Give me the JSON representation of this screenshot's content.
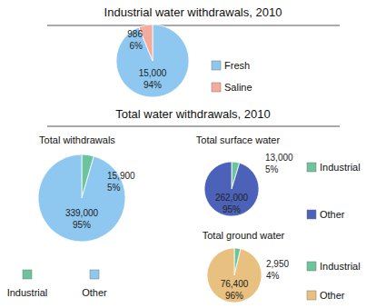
{
  "chart_data": [
    {
      "type": "pie",
      "title": "Industrial water withdrawals, 2010",
      "categories": [
        "Fresh",
        "Saline"
      ],
      "values": [
        15000,
        986
      ],
      "value_labels": [
        "15,000",
        "986"
      ],
      "percents": [
        94,
        6
      ],
      "percent_labels": [
        "94%",
        "6%"
      ],
      "colors": [
        "#8ec8f0",
        "#f4ab9c"
      ],
      "data_labels": true,
      "legend": "right"
    },
    {
      "type": "pie",
      "title": "Total water withdrawals, 2010",
      "subtitle": "Total withdrawals",
      "categories": [
        "Industrial",
        "Other"
      ],
      "values": [
        15900,
        339000
      ],
      "value_labels": [
        "15,900",
        "339,000"
      ],
      "percents": [
        5,
        95
      ],
      "percent_labels": [
        "5%",
        "95%"
      ],
      "colors": [
        "#6cc49c",
        "#8ec8f0"
      ],
      "data_labels": true,
      "legend": "bottom"
    },
    {
      "type": "pie",
      "subtitle": "Total surface water",
      "categories": [
        "Industrial",
        "Other"
      ],
      "values": [
        13000,
        262000
      ],
      "value_labels": [
        "13,000",
        "262,000"
      ],
      "percents": [
        5,
        95
      ],
      "percent_labels": [
        "5%",
        "95%"
      ],
      "colors": [
        "#6cc49c",
        "#4b62b8"
      ],
      "data_labels": true,
      "legend": "right"
    },
    {
      "type": "pie",
      "subtitle": "Total ground water",
      "categories": [
        "Industrial",
        "Other"
      ],
      "values": [
        2950,
        76400
      ],
      "value_labels": [
        "2,950",
        "76,400"
      ],
      "percents": [
        4,
        96
      ],
      "percent_labels": [
        "4%",
        "96%"
      ],
      "colors": [
        "#6cc49c",
        "#e8c080"
      ],
      "data_labels": true,
      "legend": "right"
    }
  ]
}
